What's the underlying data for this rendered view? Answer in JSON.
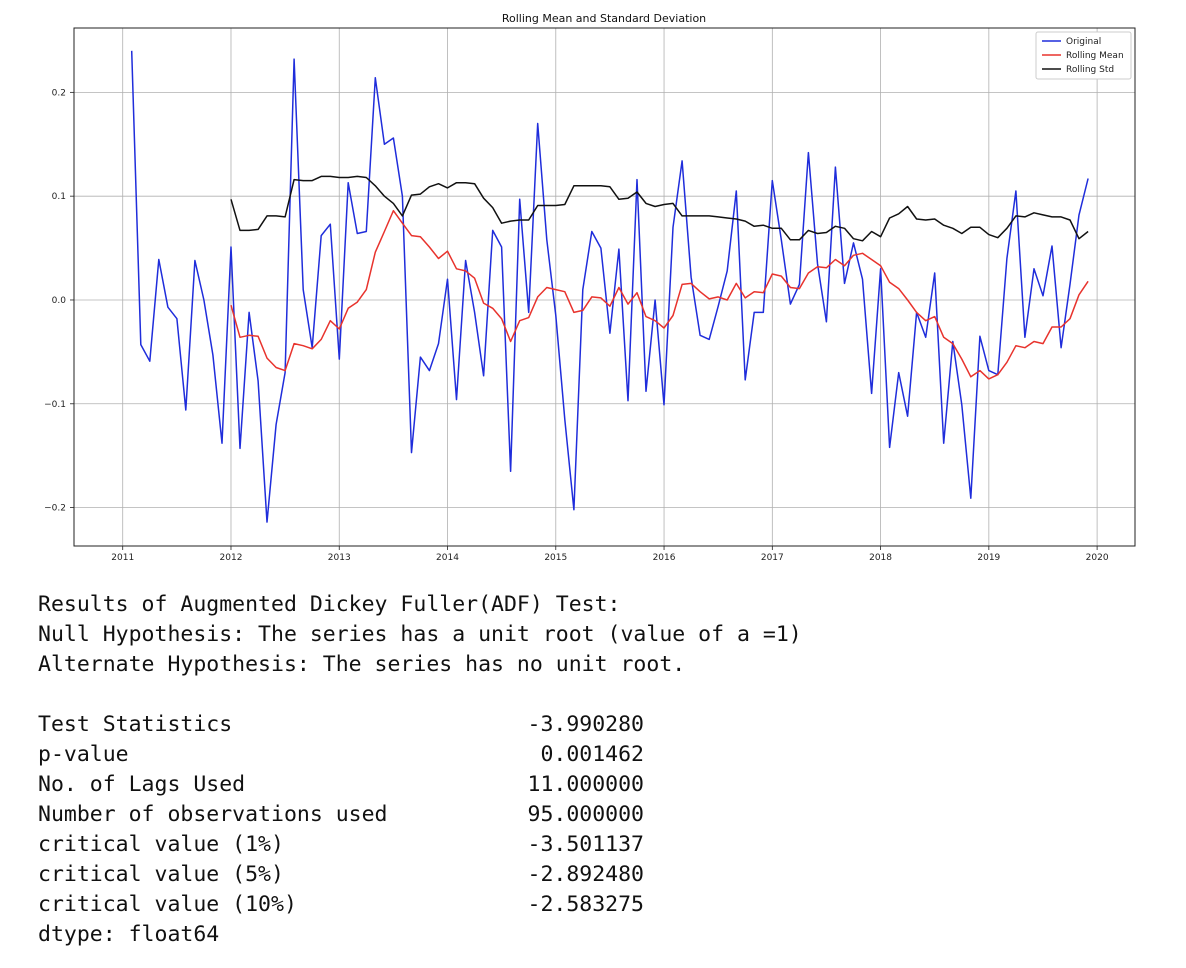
{
  "chart_data": {
    "type": "line",
    "title": "Rolling Mean and Standard Deviation",
    "xlabel": "",
    "ylabel": "",
    "xlim": [
      2010.55,
      2020.35
    ],
    "ylim": [
      -0.237,
      0.262
    ],
    "x_ticks": [
      "2011",
      "2012",
      "2013",
      "2014",
      "2015",
      "2016",
      "2017",
      "2018",
      "2019",
      "2020"
    ],
    "y_ticks": [
      {
        "value": 0.2,
        "label": "0.2"
      },
      {
        "value": 0.1,
        "label": "0.1"
      },
      {
        "value": 0.0,
        "label": "0.0"
      },
      {
        "value": -0.1,
        "label": "−0.1"
      },
      {
        "value": -0.2,
        "label": "−0.2"
      }
    ],
    "grid": true,
    "legend_position": "top-right",
    "series": [
      {
        "name": "Original",
        "color": "#1f2ddb",
        "x": [
          2011.083,
          2011.167,
          2011.25,
          2011.333,
          2011.417,
          2011.5,
          2011.583,
          2011.667,
          2011.75,
          2011.833,
          2011.917,
          2012.0,
          2012.083,
          2012.167,
          2012.25,
          2012.333,
          2012.417,
          2012.5,
          2012.583,
          2012.667,
          2012.75,
          2012.833,
          2012.917,
          2013.0,
          2013.083,
          2013.167,
          2013.25,
          2013.333,
          2013.417,
          2013.5,
          2013.583,
          2013.667,
          2013.75,
          2013.833,
          2013.917,
          2014.0,
          2014.083,
          2014.167,
          2014.25,
          2014.333,
          2014.417,
          2014.5,
          2014.583,
          2014.667,
          2014.75,
          2014.833,
          2014.917,
          2015.0,
          2015.083,
          2015.167,
          2015.25,
          2015.333,
          2015.417,
          2015.5,
          2015.583,
          2015.667,
          2015.75,
          2015.833,
          2015.917,
          2016.0,
          2016.083,
          2016.167,
          2016.25,
          2016.333,
          2016.417,
          2016.5,
          2016.583,
          2016.667,
          2016.75,
          2016.833,
          2016.917,
          2017.0,
          2017.083,
          2017.167,
          2017.25,
          2017.333,
          2017.417,
          2017.5,
          2017.583,
          2017.667,
          2017.75,
          2017.833,
          2017.917,
          2018.0,
          2018.083,
          2018.167,
          2018.25,
          2018.333,
          2018.417,
          2018.5,
          2018.583,
          2018.667,
          2018.75,
          2018.833,
          2018.917,
          2019.0,
          2019.083,
          2019.167,
          2019.25,
          2019.333,
          2019.417,
          2019.5,
          2019.583,
          2019.667,
          2019.75,
          2019.833,
          2019.917
        ],
        "values": [
          0.24,
          -0.043,
          -0.059,
          0.039,
          -0.007,
          -0.018,
          -0.106,
          0.038,
          0.0,
          -0.053,
          -0.138,
          0.051,
          -0.143,
          -0.012,
          -0.078,
          -0.214,
          -0.12,
          -0.07,
          0.232,
          0.01,
          -0.046,
          0.062,
          0.073,
          -0.057,
          0.113,
          0.064,
          0.066,
          0.214,
          0.15,
          0.156,
          0.1,
          -0.147,
          -0.055,
          -0.068,
          -0.042,
          0.02,
          -0.096,
          0.038,
          -0.012,
          -0.073,
          0.067,
          0.051,
          -0.165,
          0.097,
          -0.012,
          0.17,
          0.058,
          -0.015,
          -0.115,
          -0.202,
          0.01,
          0.066,
          0.05,
          -0.032,
          0.049,
          -0.097,
          0.116,
          -0.088,
          0.0,
          -0.101,
          0.07,
          0.134,
          0.022,
          -0.034,
          -0.038,
          -0.006,
          0.028,
          0.105,
          -0.077,
          -0.012,
          -0.012,
          0.115,
          0.058,
          -0.004,
          0.015,
          0.142,
          0.035,
          -0.021,
          0.128,
          0.016,
          0.055,
          0.02,
          -0.09,
          0.03,
          -0.142,
          -0.07,
          -0.112,
          -0.012,
          -0.036,
          0.026,
          -0.138,
          -0.04,
          -0.101,
          -0.191,
          -0.035,
          -0.068,
          -0.072,
          0.04,
          0.105,
          -0.036,
          0.03,
          0.004,
          0.052,
          -0.046,
          0.015,
          0.082,
          0.117
        ]
      },
      {
        "name": "Rolling Mean",
        "color": "#e8332d",
        "x": [
          2012.0,
          2012.083,
          2012.167,
          2012.25,
          2012.333,
          2012.417,
          2012.5,
          2012.583,
          2012.667,
          2012.75,
          2012.833,
          2012.917,
          2013.0,
          2013.083,
          2013.167,
          2013.25,
          2013.333,
          2013.417,
          2013.5,
          2013.583,
          2013.667,
          2013.75,
          2013.833,
          2013.917,
          2014.0,
          2014.083,
          2014.167,
          2014.25,
          2014.333,
          2014.417,
          2014.5,
          2014.583,
          2014.667,
          2014.75,
          2014.833,
          2014.917,
          2015.0,
          2015.083,
          2015.167,
          2015.25,
          2015.333,
          2015.417,
          2015.5,
          2015.583,
          2015.667,
          2015.75,
          2015.833,
          2015.917,
          2016.0,
          2016.083,
          2016.167,
          2016.25,
          2016.333,
          2016.417,
          2016.5,
          2016.583,
          2016.667,
          2016.75,
          2016.833,
          2016.917,
          2017.0,
          2017.083,
          2017.167,
          2017.25,
          2017.333,
          2017.417,
          2017.5,
          2017.583,
          2017.667,
          2017.75,
          2017.833,
          2017.917,
          2018.0,
          2018.083,
          2018.167,
          2018.25,
          2018.333,
          2018.417,
          2018.5,
          2018.583,
          2018.667,
          2018.75,
          2018.833,
          2018.917,
          2019.0,
          2019.083,
          2019.167,
          2019.25,
          2019.333,
          2019.417,
          2019.5,
          2019.583,
          2019.667,
          2019.75,
          2019.833,
          2019.917
        ],
        "values": [
          -0.005,
          -0.036,
          -0.034,
          -0.035,
          -0.056,
          -0.065,
          -0.068,
          -0.042,
          -0.044,
          -0.047,
          -0.038,
          -0.02,
          -0.028,
          -0.008,
          -0.002,
          0.01,
          0.046,
          0.066,
          0.086,
          0.074,
          0.062,
          0.061,
          0.051,
          0.04,
          0.047,
          0.03,
          0.028,
          0.021,
          -0.003,
          -0.008,
          -0.018,
          -0.04,
          -0.02,
          -0.017,
          0.003,
          0.012,
          0.01,
          0.008,
          -0.012,
          -0.01,
          0.003,
          0.002,
          -0.006,
          0.012,
          -0.004,
          0.007,
          -0.016,
          -0.02,
          -0.027,
          -0.015,
          0.015,
          0.016,
          0.008,
          0.001,
          0.003,
          0.0,
          0.016,
          0.002,
          0.008,
          0.007,
          0.025,
          0.023,
          0.012,
          0.011,
          0.026,
          0.032,
          0.031,
          0.039,
          0.033,
          0.043,
          0.045,
          0.039,
          0.033,
          0.017,
          0.011,
          0.0,
          -0.012,
          -0.02,
          -0.016,
          -0.036,
          -0.042,
          -0.057,
          -0.074,
          -0.068,
          -0.076,
          -0.072,
          -0.06,
          -0.044,
          -0.046,
          -0.04,
          -0.042,
          -0.026,
          -0.026,
          -0.018,
          0.005,
          0.018
        ]
      },
      {
        "name": "Rolling Std",
        "color": "#111111",
        "x": [
          2012.0,
          2012.083,
          2012.167,
          2012.25,
          2012.333,
          2012.417,
          2012.5,
          2012.583,
          2012.667,
          2012.75,
          2012.833,
          2012.917,
          2013.0,
          2013.083,
          2013.167,
          2013.25,
          2013.333,
          2013.417,
          2013.5,
          2013.583,
          2013.667,
          2013.75,
          2013.833,
          2013.917,
          2014.0,
          2014.083,
          2014.167,
          2014.25,
          2014.333,
          2014.417,
          2014.5,
          2014.583,
          2014.667,
          2014.75,
          2014.833,
          2014.917,
          2015.0,
          2015.083,
          2015.167,
          2015.25,
          2015.333,
          2015.417,
          2015.5,
          2015.583,
          2015.667,
          2015.75,
          2015.833,
          2015.917,
          2016.0,
          2016.083,
          2016.167,
          2016.25,
          2016.333,
          2016.417,
          2016.5,
          2016.583,
          2016.667,
          2016.75,
          2016.833,
          2016.917,
          2017.0,
          2017.083,
          2017.167,
          2017.25,
          2017.333,
          2017.417,
          2017.5,
          2017.583,
          2017.667,
          2017.75,
          2017.833,
          2017.917,
          2018.0,
          2018.083,
          2018.167,
          2018.25,
          2018.333,
          2018.417,
          2018.5,
          2018.583,
          2018.667,
          2018.75,
          2018.833,
          2018.917,
          2019.0,
          2019.083,
          2019.167,
          2019.25,
          2019.333,
          2019.417,
          2019.5,
          2019.583,
          2019.667,
          2019.75,
          2019.833,
          2019.917
        ],
        "values": [
          0.097,
          0.067,
          0.067,
          0.068,
          0.081,
          0.081,
          0.08,
          0.116,
          0.115,
          0.115,
          0.119,
          0.119,
          0.118,
          0.118,
          0.119,
          0.118,
          0.11,
          0.1,
          0.093,
          0.081,
          0.101,
          0.102,
          0.109,
          0.112,
          0.108,
          0.113,
          0.113,
          0.112,
          0.098,
          0.089,
          0.074,
          0.076,
          0.077,
          0.077,
          0.091,
          0.091,
          0.091,
          0.092,
          0.11,
          0.11,
          0.11,
          0.11,
          0.109,
          0.097,
          0.098,
          0.104,
          0.093,
          0.09,
          0.092,
          0.093,
          0.081,
          0.081,
          0.081,
          0.081,
          0.08,
          0.079,
          0.078,
          0.076,
          0.071,
          0.072,
          0.069,
          0.069,
          0.058,
          0.058,
          0.067,
          0.064,
          0.065,
          0.071,
          0.069,
          0.059,
          0.057,
          0.066,
          0.061,
          0.079,
          0.083,
          0.09,
          0.078,
          0.077,
          0.078,
          0.072,
          0.069,
          0.064,
          0.07,
          0.07,
          0.063,
          0.06,
          0.069,
          0.081,
          0.08,
          0.084,
          0.082,
          0.08,
          0.08,
          0.077,
          0.059,
          0.066
        ]
      }
    ]
  },
  "output": {
    "header_lines": [
      "Results of Augmented Dickey Fuller(ADF) Test:",
      "Null Hypothesis: The series has a unit root (value of a =1)",
      "Alternate Hypothesis: The series has no unit root."
    ],
    "rows": [
      {
        "label": "Test Statistics",
        "value": "-3.990280"
      },
      {
        "label": "p-value",
        "value": "0.001462"
      },
      {
        "label": "No. of Lags Used",
        "value": "11.000000"
      },
      {
        "label": "Number of observations used",
        "value": "95.000000"
      },
      {
        "label": "critical value (1%)",
        "value": "-3.501137"
      },
      {
        "label": "critical value (5%)",
        "value": "-2.892480"
      },
      {
        "label": "critical value (10%)",
        "value": "-2.583275"
      }
    ],
    "dtype_line": "dtype: float64"
  }
}
